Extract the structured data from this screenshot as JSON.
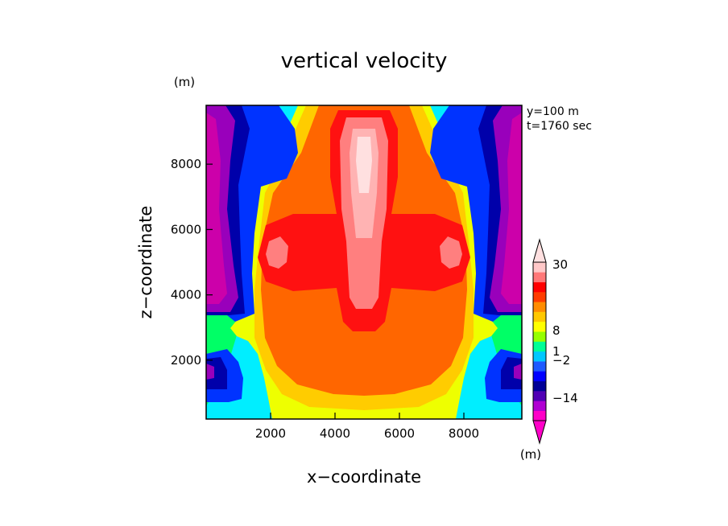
{
  "chart_data": {
    "type": "heatmap",
    "title": "vertical velocity",
    "xlabel": "x−coordinate",
    "ylabel": "z−coordinate",
    "y_unit": "(m)",
    "colorbar_unit": "(m)",
    "annotations": [
      "y=100 m",
      "t=1760 sec"
    ],
    "xlim": [
      0,
      9800
    ],
    "ylim": [
      200,
      9800
    ],
    "x_ticks": [
      2000,
      4000,
      6000,
      8000
    ],
    "y_ticks": [
      2000,
      4000,
      6000,
      8000
    ],
    "x_tick_labels": [
      "2000",
      "4000",
      "6000",
      "8000"
    ],
    "y_tick_labels": [
      "2000",
      "4000",
      "6000",
      "8000"
    ],
    "colorbar": {
      "label_values": [
        "30",
        "8",
        "1",
        "−2",
        "−14"
      ],
      "colors": [
        "#ff00c8",
        "#b000d2",
        "#5000b4",
        "#000096",
        "#0000ff",
        "#1e5aff",
        "#00c8ff",
        "#00ff96",
        "#96ff00",
        "#ffff00",
        "#ffc800",
        "#ff8c00",
        "#ff3c00",
        "#ff0000",
        "#ff7878",
        "#ffc8c8"
      ]
    },
    "contour_levels_colors": {
      "c0": "#cc00aa",
      "c1": "#9900bb",
      "c2": "#0000aa",
      "c3": "#0033ff",
      "c4": "#00eeff",
      "c5": "#00ff66",
      "c6": "#eeff00",
      "c7": "#ffcc00",
      "c8": "#ff6600",
      "c9": "#ff1111",
      "c10": "#ff7f7f",
      "c11": "#ffb3b3",
      "c12": "#ffe0e0"
    }
  }
}
